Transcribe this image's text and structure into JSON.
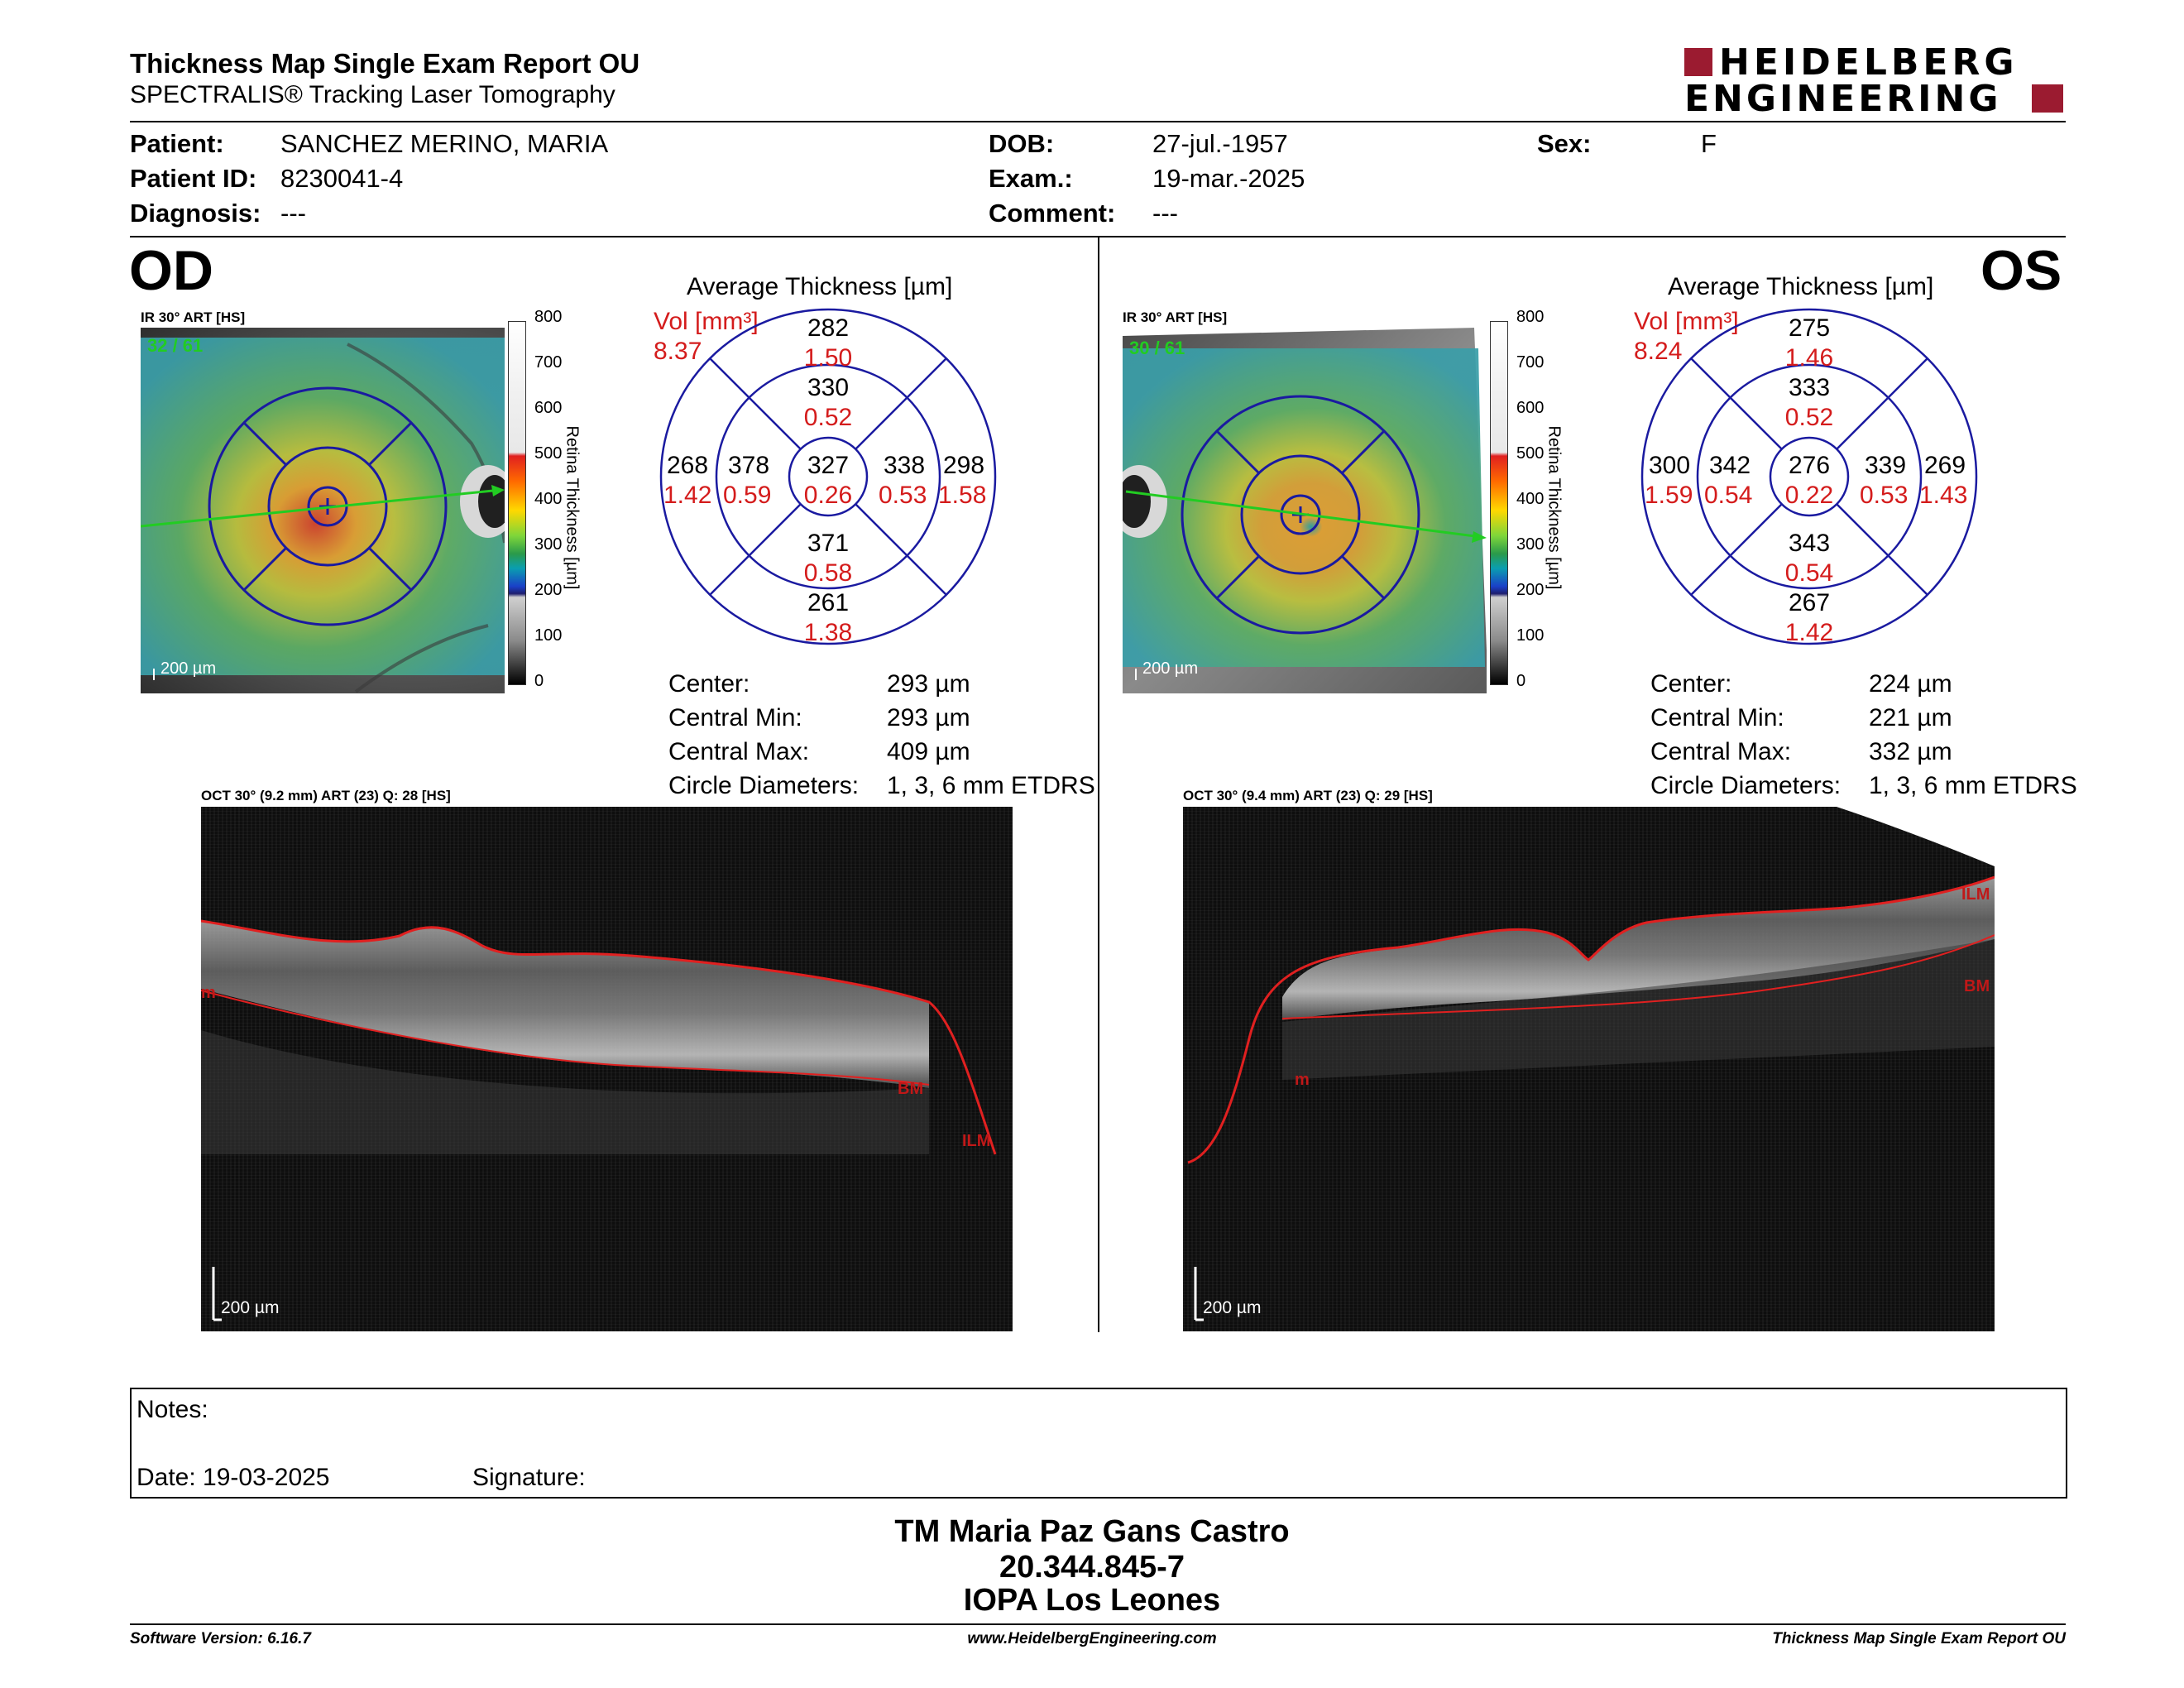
{
  "header": {
    "title": "Thickness Map Single Exam Report OU",
    "subtitle": "SPECTRALIS® Tracking Laser Tomography",
    "logo_line1": "HEIDELBERG",
    "logo_line2": "ENGINEERING",
    "logo_color": "#9b1b30"
  },
  "patient": {
    "patient_label": "Patient:",
    "patient_value": "SANCHEZ MERINO, MARIA",
    "id_label": "Patient ID:",
    "id_value": "8230041-4",
    "diagnosis_label": "Diagnosis:",
    "diagnosis_value": "---",
    "dob_label": "DOB:",
    "dob_value": "27-jul.-1957",
    "exam_label": "Exam.:",
    "exam_value": "19-mar.-2025",
    "comment_label": "Comment:",
    "comment_value": "---",
    "sex_label": "Sex:",
    "sex_value": "F"
  },
  "colorbar": {
    "title": "Retina Thickness [µm]",
    "ticks": [
      "800",
      "700",
      "600",
      "500",
      "400",
      "300",
      "200",
      "100",
      "0"
    ]
  },
  "od": {
    "eye": "OD",
    "ir_label": "IR 30° ART [HS]",
    "ir_art": "32 / 61",
    "scale": "200 µm",
    "avg_title": "Average Thickness [µm]",
    "vol_label": "Vol [mm³]",
    "vol_total": "8.37",
    "sectors": {
      "outer_top": {
        "t": "282",
        "v": "1.50"
      },
      "inner_top": {
        "t": "330",
        "v": "0.52"
      },
      "outer_left": {
        "t": "268",
        "v": "1.42"
      },
      "inner_left": {
        "t": "378",
        "v": "0.59"
      },
      "center": {
        "t": "327",
        "v": "0.26"
      },
      "inner_right": {
        "t": "338",
        "v": "0.53"
      },
      "outer_right": {
        "t": "298",
        "v": "1.58"
      },
      "inner_bottom": {
        "t": "371",
        "v": "0.58"
      },
      "outer_bottom": {
        "t": "261",
        "v": "1.38"
      }
    },
    "stats": {
      "center_label": "Center:",
      "center_value": "293 µm",
      "min_label": "Central Min:",
      "min_value": "293 µm",
      "max_label": "Central Max:",
      "max_value": "409 µm",
      "diam_label": "Circle Diameters:",
      "diam_value": "1, 3, 6 mm ETDRS"
    },
    "oct_label": "OCT 30° (9.2 mm) ART (23) Q: 28 [HS]",
    "oct_scale": "200 µm",
    "tags": {
      "left": "m",
      "bm": "BM",
      "ilm": "ILM"
    }
  },
  "os": {
    "eye": "OS",
    "ir_label": "IR 30° ART [HS]",
    "ir_art": "30 / 61",
    "scale": "200 µm",
    "avg_title": "Average Thickness [µm]",
    "vol_label": "Vol [mm³]",
    "vol_total": "8.24",
    "sectors": {
      "outer_top": {
        "t": "275",
        "v": "1.46"
      },
      "inner_top": {
        "t": "333",
        "v": "0.52"
      },
      "outer_left": {
        "t": "300",
        "v": "1.59"
      },
      "inner_left": {
        "t": "342",
        "v": "0.54"
      },
      "center": {
        "t": "276",
        "v": "0.22"
      },
      "inner_right": {
        "t": "339",
        "v": "0.53"
      },
      "outer_right": {
        "t": "269",
        "v": "1.43"
      },
      "inner_bottom": {
        "t": "343",
        "v": "0.54"
      },
      "outer_bottom": {
        "t": "267",
        "v": "1.42"
      }
    },
    "stats": {
      "center_label": "Center:",
      "center_value": "224 µm",
      "min_label": "Central Min:",
      "min_value": "221 µm",
      "max_label": "Central Max:",
      "max_value": "332 µm",
      "diam_label": "Circle Diameters:",
      "diam_value": "1, 3, 6 mm ETDRS"
    },
    "oct_label": "OCT 30° (9.4 mm) ART (23) Q: 29 [HS]",
    "oct_scale": "200 µm",
    "tags": {
      "ilm": "ILM",
      "bm": "BM",
      "left": "m"
    }
  },
  "notes": {
    "notes_label": "Notes:",
    "date_label": "Date: 19-03-2025",
    "signature_label": "Signature:"
  },
  "stamp": {
    "line1": "TM Maria Paz Gans Castro",
    "line2": "20.344.845-7",
    "line3": "IOPA Los Leones"
  },
  "footer": {
    "software": "Software Version: 6.16.7",
    "url": "www.HeidelbergEngineering.com",
    "report": "Thickness Map Single Exam Report OU"
  },
  "colors": {
    "grid_blue": "#1a1aa0",
    "red_text": "#d41c1c",
    "scan_line": "#22cc22"
  }
}
